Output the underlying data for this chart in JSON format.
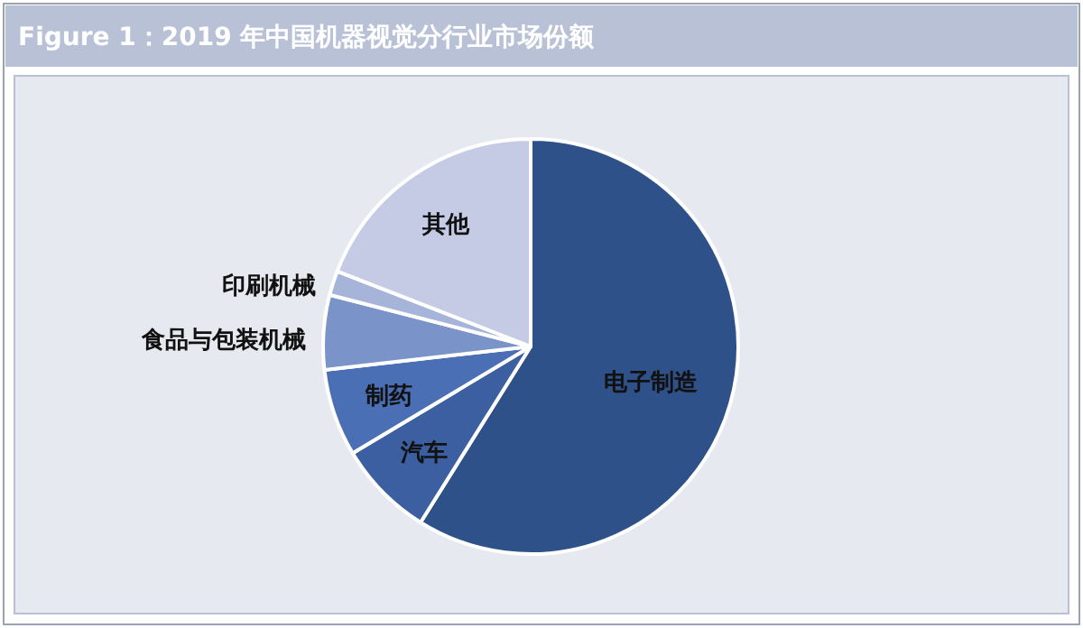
{
  "chart_data": {
    "type": "pie",
    "title": "Figure  1：2019 年中国机器视觉分行业市场份额",
    "categories": [
      "电子制造",
      "汽车",
      "制药",
      "食品与包装机械",
      "印刷机械",
      "其他"
    ],
    "values": [
      58.9,
      7.5,
      6.8,
      5.8,
      1.9,
      19.1
    ],
    "colors": [
      "#2f5189",
      "#3b5fa0",
      "#4a6fb5",
      "#7a93c8",
      "#a5b4d8",
      "#c5cbe4"
    ],
    "legend": false
  }
}
